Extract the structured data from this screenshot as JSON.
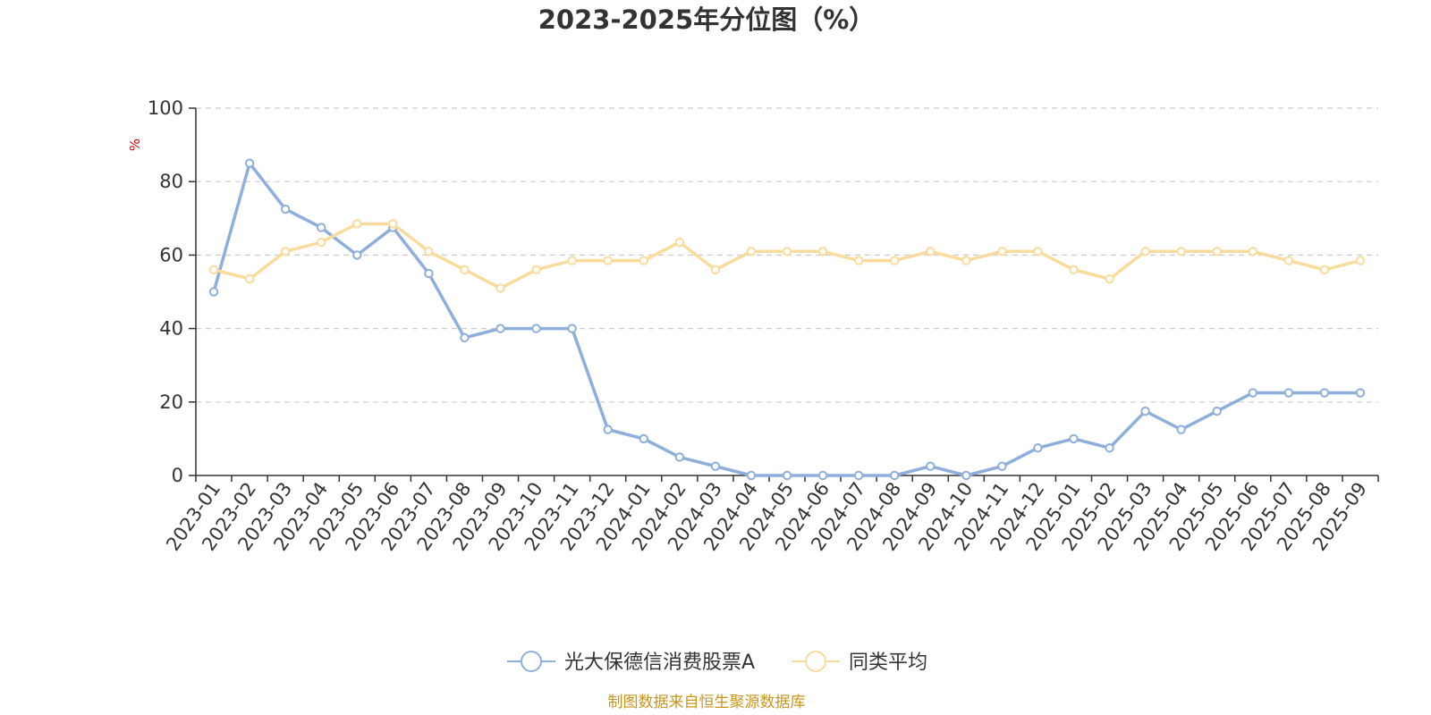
{
  "chart_data": {
    "type": "line",
    "title": "2023-2025年分位图（%）",
    "ylabel": "%",
    "xlabel": "",
    "ylim": [
      0,
      100
    ],
    "yticks": [
      0,
      20,
      40,
      60,
      80,
      100
    ],
    "grid": true,
    "legend_position": "bottom",
    "categories": [
      "2023-01",
      "2023-02",
      "2023-03",
      "2023-04",
      "2023-05",
      "2023-06",
      "2023-07",
      "2023-08",
      "2023-09",
      "2023-10",
      "2023-11",
      "2023-12",
      "2024-01",
      "2024-02",
      "2024-03",
      "2024-04",
      "2024-05",
      "2024-06",
      "2024-07",
      "2024-08",
      "2024-09",
      "2024-10",
      "2024-11",
      "2024-12",
      "2025-01",
      "2025-02",
      "2025-03",
      "2025-04",
      "2025-05",
      "2025-06",
      "2025-07",
      "2025-08",
      "2025-09"
    ],
    "series": [
      {
        "name": "光大保德信消费股票A",
        "color": "#8eaedb",
        "values": [
          50,
          85,
          72.5,
          67.5,
          60,
          67.5,
          55,
          37.5,
          40,
          40,
          40,
          12.5,
          10,
          5,
          2.5,
          0,
          0,
          0,
          0,
          0,
          2.5,
          0,
          2.5,
          7.5,
          10,
          7.5,
          17.5,
          12.5,
          17.5,
          22.5,
          22.5,
          22.5,
          22.5
        ]
      },
      {
        "name": "同类平均",
        "color": "#f9dc9b",
        "values": [
          56,
          53.5,
          61,
          63.5,
          68.5,
          68.5,
          61,
          56,
          51,
          56,
          58.5,
          58.5,
          58.5,
          63.5,
          56,
          61,
          61,
          61,
          58.5,
          58.5,
          61,
          58.5,
          61,
          61,
          56,
          53.5,
          61,
          61,
          61,
          61,
          58.5,
          56,
          58.5
        ]
      }
    ],
    "source_note": "制图数据来自恒生聚源数据库"
  }
}
